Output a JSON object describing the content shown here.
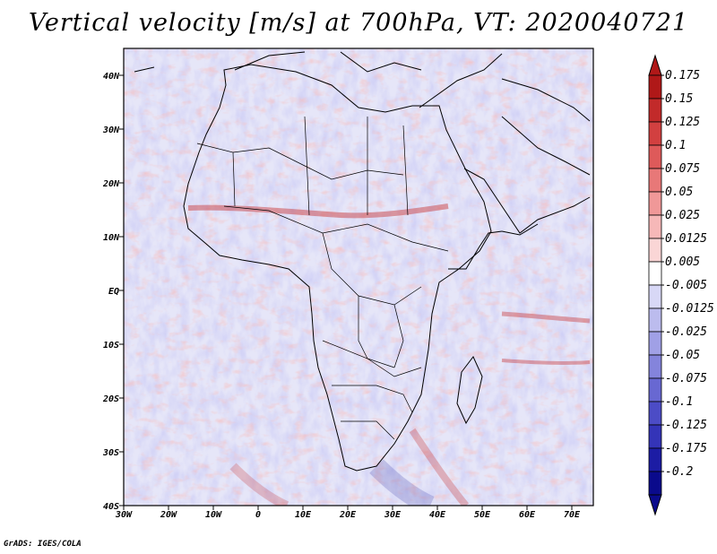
{
  "title": "Vertical velocity [m/s] at 700hPa, VT: 2020040721",
  "footer": "GrADS: IGES/COLA",
  "map": {
    "lat_labels": [
      "40N",
      "30N",
      "20N",
      "10N",
      "EQ",
      "10S",
      "20S",
      "30S",
      "40S"
    ],
    "lon_labels": [
      "30W",
      "20W",
      "10W",
      "0",
      "10E",
      "20E",
      "30E",
      "40E",
      "50E",
      "60E",
      "70E"
    ]
  },
  "colorbar": {
    "labels": [
      "0.175",
      "0.15",
      "0.125",
      "0.1",
      "0.075",
      "0.05",
      "0.025",
      "0.0125",
      "0.005",
      "-0.005",
      "-0.0125",
      "-0.025",
      "-0.05",
      "-0.075",
      "-0.1",
      "-0.125",
      "-0.175",
      "-0.2"
    ],
    "colors": [
      "#b01818",
      "#c22a2a",
      "#d24040",
      "#de5a5a",
      "#e87878",
      "#f09898",
      "#f6b8b8",
      "#fad6d6",
      "#ffffff",
      "#d8d8f6",
      "#bcbcee",
      "#a0a0e6",
      "#8484dc",
      "#6868d2",
      "#4c4cc6",
      "#3434b8",
      "#1c1ca4",
      "#0a0a8c"
    ]
  }
}
